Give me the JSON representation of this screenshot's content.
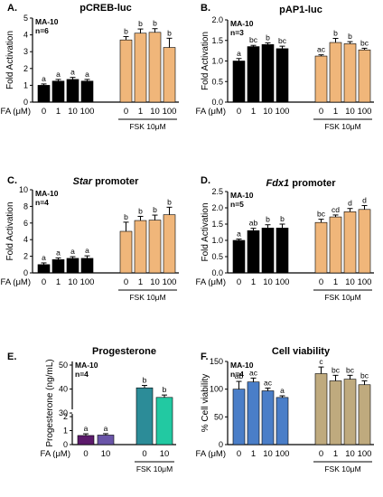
{
  "figure": {
    "x_prefix": "FA (μM)",
    "group_label": "FSK 10μM"
  },
  "chart_data": [
    {
      "type": "bar",
      "panel": "A.",
      "title": "pCREB-luc",
      "info": [
        "MA-10",
        "n=6"
      ],
      "ylabel": "Fold Activation",
      "ylim": [
        0,
        5
      ],
      "yticks": [
        "0",
        "1",
        "2",
        "3",
        "4",
        "5"
      ],
      "categories": [
        "0",
        "1",
        "10",
        "100",
        "0",
        "1",
        "10",
        "100"
      ],
      "values": [
        1.0,
        1.25,
        1.35,
        1.25,
        3.7,
        4.1,
        4.15,
        3.25
      ],
      "errors": [
        0.08,
        0.1,
        0.12,
        0.1,
        0.2,
        0.25,
        0.22,
        0.55
      ],
      "sig": [
        "a",
        "a",
        "a",
        "a",
        "b",
        "b",
        "b",
        "b"
      ],
      "colors": [
        "#000000",
        "#000000",
        "#000000",
        "#000000",
        "#f0b67a",
        "#f0b67a",
        "#f0b67a",
        "#f0b67a"
      ]
    },
    {
      "type": "bar",
      "panel": "B.",
      "title": "pAP1-luc",
      "info": [
        "MA-10",
        "n=3"
      ],
      "ylabel": "Fold Activation",
      "ylim": [
        0,
        2.0
      ],
      "yticks": [
        "0.0",
        "0.5",
        "1.0",
        "1.5",
        "2.0"
      ],
      "categories": [
        "0",
        "1",
        "10",
        "100",
        "0",
        "1",
        "10",
        "100"
      ],
      "values": [
        1.0,
        1.35,
        1.4,
        1.3,
        1.12,
        1.45,
        1.42,
        1.27
      ],
      "errors": [
        0.06,
        0.03,
        0.04,
        0.06,
        0.03,
        0.1,
        0.05,
        0.04
      ],
      "sig": [
        "a",
        "bc",
        "b",
        "bc",
        "ac",
        "b",
        "b",
        "bc"
      ],
      "colors": [
        "#000000",
        "#000000",
        "#000000",
        "#000000",
        "#f0b67a",
        "#f0b67a",
        "#f0b67a",
        "#f0b67a"
      ]
    },
    {
      "type": "bar",
      "panel": "C.",
      "title": "Star promoter",
      "title_italic": "Star",
      "info": [
        "MA-10",
        "n=4"
      ],
      "ylabel": "Fold Activation",
      "ylim": [
        0,
        10
      ],
      "yticks": [
        "0",
        "2",
        "4",
        "6",
        "8",
        "10"
      ],
      "categories": [
        "0",
        "1",
        "10",
        "100",
        "0",
        "1",
        "10",
        "100"
      ],
      "values": [
        1.0,
        1.6,
        1.75,
        1.75,
        5.0,
        6.3,
        6.35,
        7.0
      ],
      "errors": [
        0.2,
        0.2,
        0.2,
        0.3,
        1.1,
        0.5,
        0.6,
        0.9
      ],
      "sig": [
        "a",
        "a",
        "a",
        "a",
        "b",
        "b",
        "b",
        "b"
      ],
      "colors": [
        "#000000",
        "#000000",
        "#000000",
        "#000000",
        "#f0b67a",
        "#f0b67a",
        "#f0b67a",
        "#f0b67a"
      ]
    },
    {
      "type": "bar",
      "panel": "D.",
      "title": "Fdx1 promoter",
      "title_italic": "Fdx1",
      "info": [
        "MA-10",
        "n=5"
      ],
      "ylabel": "Fold Activation",
      "ylim": [
        0,
        2.5
      ],
      "yticks": [
        "0.0",
        "0.5",
        "1.0",
        "1.5",
        "2.0",
        "2.5"
      ],
      "categories": [
        "0",
        "1",
        "10",
        "100",
        "0",
        "1",
        "10",
        "100"
      ],
      "values": [
        1.0,
        1.3,
        1.38,
        1.38,
        1.55,
        1.72,
        1.88,
        1.95
      ],
      "errors": [
        0.04,
        0.07,
        0.1,
        0.12,
        0.1,
        0.06,
        0.1,
        0.12
      ],
      "sig": [
        "a",
        "ab",
        "b",
        "b",
        "bc",
        "cd",
        "d",
        "d"
      ],
      "colors": [
        "#000000",
        "#000000",
        "#000000",
        "#000000",
        "#f0b67a",
        "#f0b67a",
        "#f0b67a",
        "#f0b67a"
      ]
    },
    {
      "type": "bar",
      "panel": "E.",
      "title": "Progesterone",
      "info": [
        "MA-10",
        "n=4"
      ],
      "ylabel": "Progesterone (ng/mL)",
      "ylim": [
        0,
        50
      ],
      "yticks": [
        "0",
        "1",
        "2",
        "30",
        "40",
        "50"
      ],
      "axis_break": true,
      "categories": [
        "0",
        "10",
        "0",
        "10"
      ],
      "values": [
        0.65,
        0.68,
        40.5,
        36.5
      ],
      "errors": [
        0.12,
        0.1,
        1.0,
        1.0
      ],
      "sig": [
        "a",
        "a",
        "b",
        "b"
      ],
      "colors": [
        "#5c1a6b",
        "#6a55a8",
        "#2c8c98",
        "#22c9a2"
      ]
    },
    {
      "type": "bar",
      "panel": "F.",
      "title": "Cell viability",
      "info": [
        "MA-10",
        "n=4"
      ],
      "ylabel": "% Cell viability",
      "ylim": [
        0,
        150
      ],
      "yticks": [
        "0",
        "50",
        "100",
        "150"
      ],
      "categories": [
        "0",
        "1",
        "10",
        "100",
        "0",
        "1",
        "10",
        "100"
      ],
      "values": [
        100,
        113,
        97,
        85,
        128,
        115,
        118,
        108
      ],
      "errors": [
        14,
        7,
        5,
        3,
        12,
        10,
        7,
        7
      ],
      "sig": [
        "ab",
        "ac",
        "ac",
        "a",
        "c",
        "bc",
        "bc",
        "bc"
      ],
      "colors": [
        "#4a7ec8",
        "#4a7ec8",
        "#4a7ec8",
        "#4a7ec8",
        "#bfaa7e",
        "#bfaa7e",
        "#bfaa7e",
        "#bfaa7e"
      ]
    }
  ]
}
